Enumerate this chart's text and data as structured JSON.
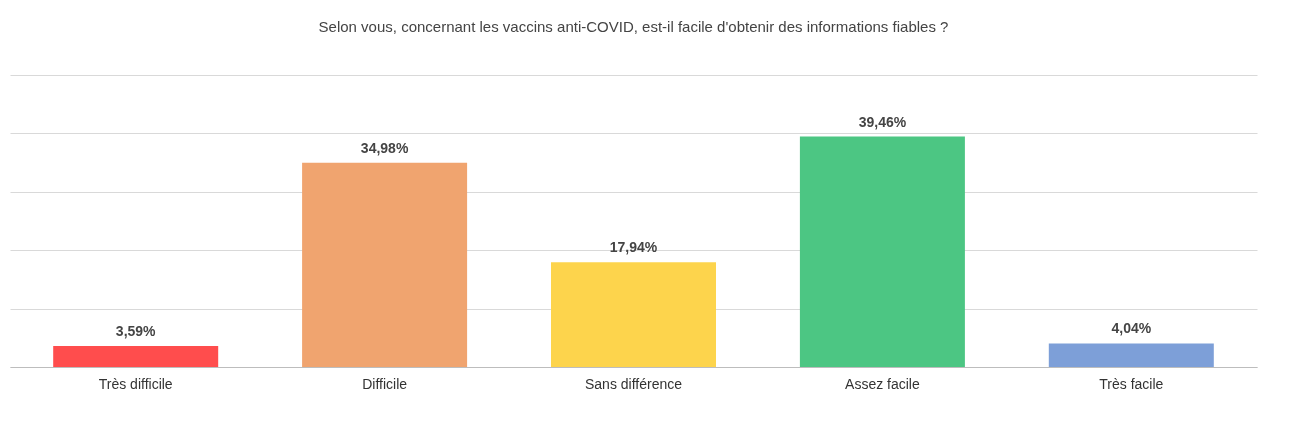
{
  "chart_data": {
    "type": "bar",
    "title": "Selon vous, concernant les vaccins anti-COVID, est-il facile d'obtenir des informations fiables ?",
    "categories": [
      "Très difficile",
      "Difficile",
      "Sans différence",
      "Assez facile",
      "Très facile"
    ],
    "values": [
      3.59,
      34.98,
      17.94,
      39.46,
      4.04
    ],
    "colors": [
      "#ff4d4d",
      "#f0a46f",
      "#fdd44c",
      "#4cc683",
      "#7d9fd8"
    ],
    "value_labels": [
      "3,59%",
      "34,98%",
      "17,94%",
      "39,46%",
      "4,04%"
    ],
    "ylim": [
      0,
      50
    ],
    "yticks": [
      {
        "value": 0,
        "label": null
      },
      {
        "value": 10,
        "label": null
      },
      {
        "value": 20,
        "label": null
      },
      {
        "value": 30,
        "label": null
      },
      {
        "value": 40,
        "label": null
      },
      {
        "value": 50,
        "label": null
      }
    ],
    "tick_labels": "x",
    "grid": true,
    "legend": false
  }
}
